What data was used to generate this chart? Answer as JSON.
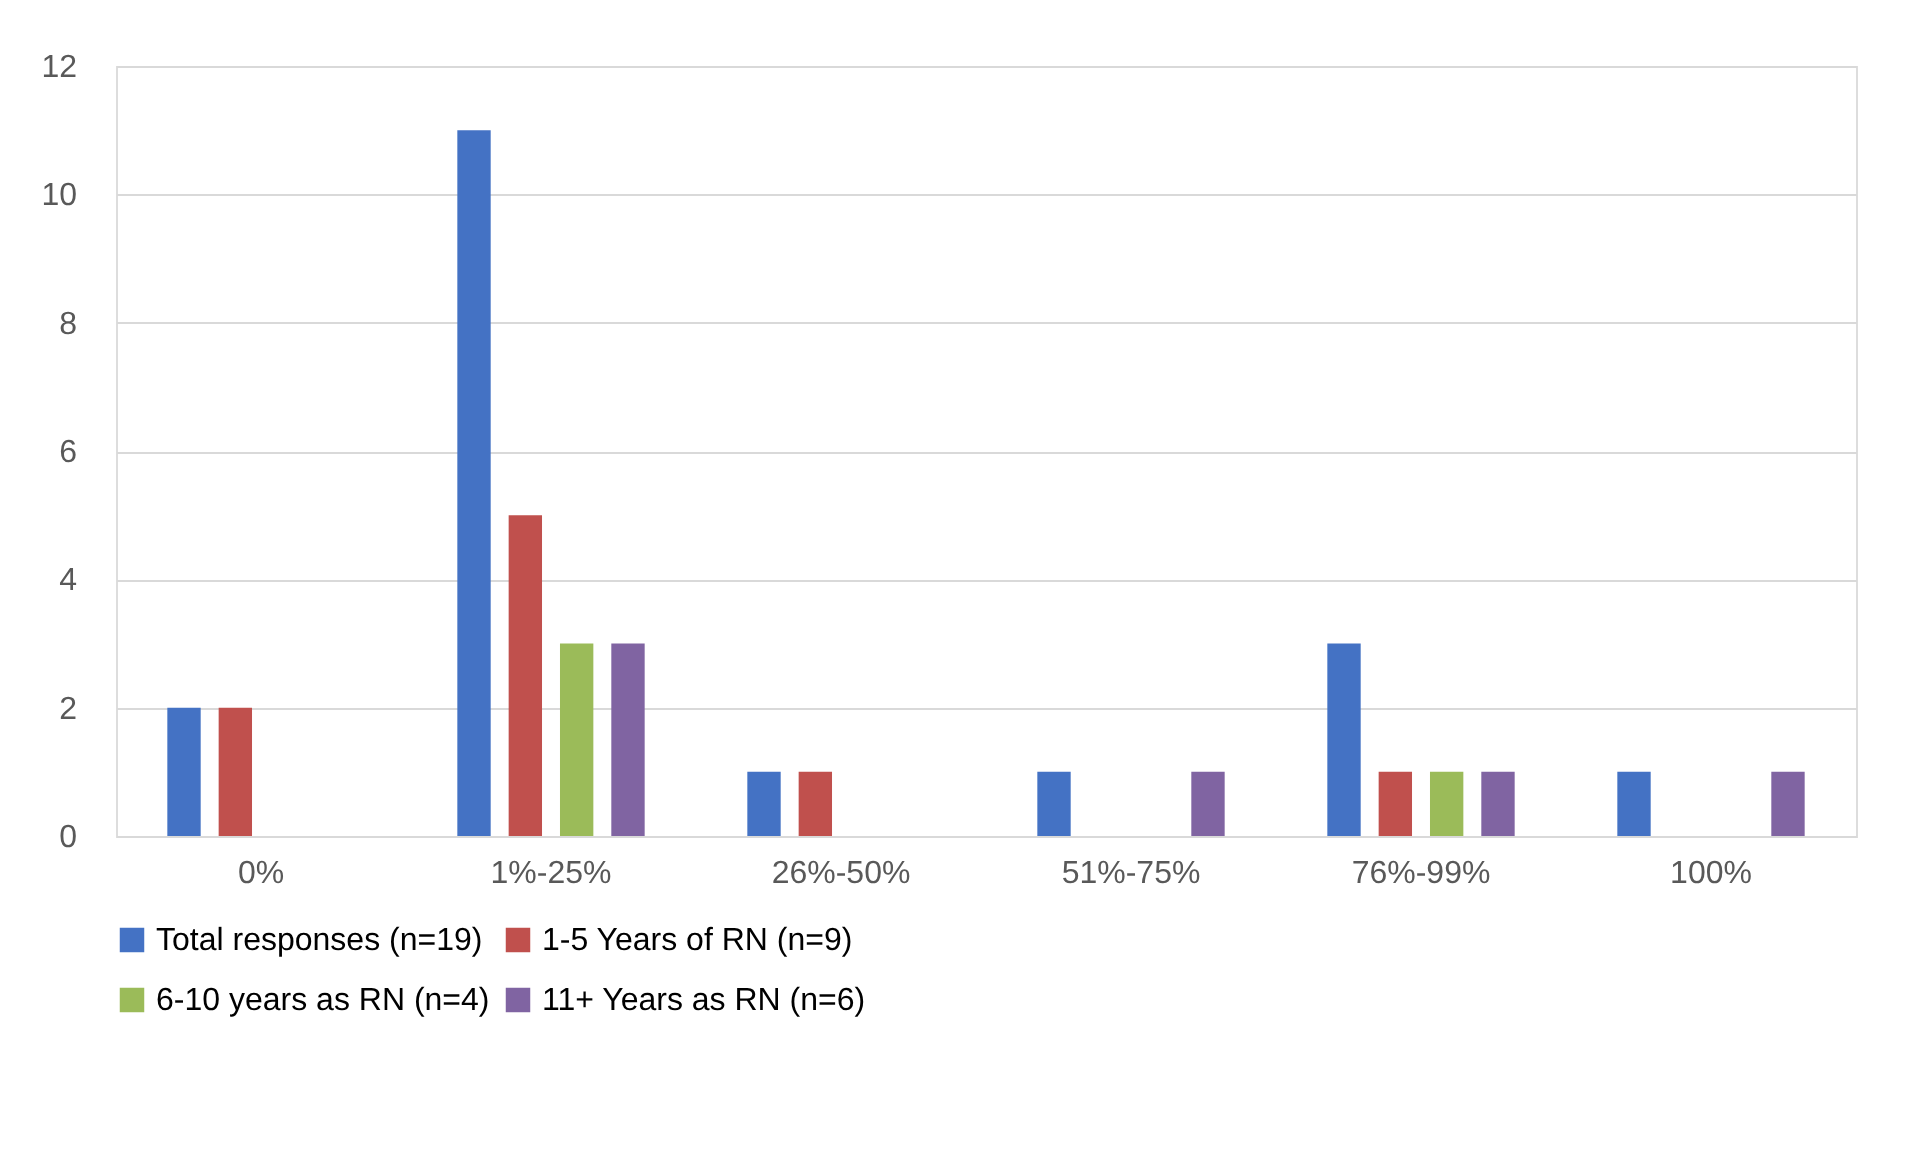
{
  "chart_data": {
    "type": "bar",
    "categories": [
      "0%",
      "1%-25%",
      "26%-50%",
      "51%-75%",
      "76%-99%",
      "100%"
    ],
    "series": [
      {
        "name": "Total responses (n=19)",
        "color": "#4472c4",
        "values": [
          2,
          11,
          1,
          1,
          3,
          1
        ]
      },
      {
        "name": "1-5 Years of RN (n=9)",
        "color": "#c0504d",
        "values": [
          2,
          5,
          1,
          0,
          1,
          0
        ]
      },
      {
        "name": "6-10 years as RN (n=4)",
        "color": "#9bbb59",
        "values": [
          0,
          3,
          0,
          0,
          1,
          0
        ]
      },
      {
        "name": "11+ Years as RN (n=6)",
        "color": "#8064a2",
        "values": [
          0,
          3,
          0,
          1,
          1,
          1
        ]
      }
    ],
    "ylim": [
      0,
      12
    ],
    "yticks": [
      0,
      2,
      4,
      6,
      8,
      10,
      12
    ],
    "grid": "y",
    "legend": "bottom"
  }
}
